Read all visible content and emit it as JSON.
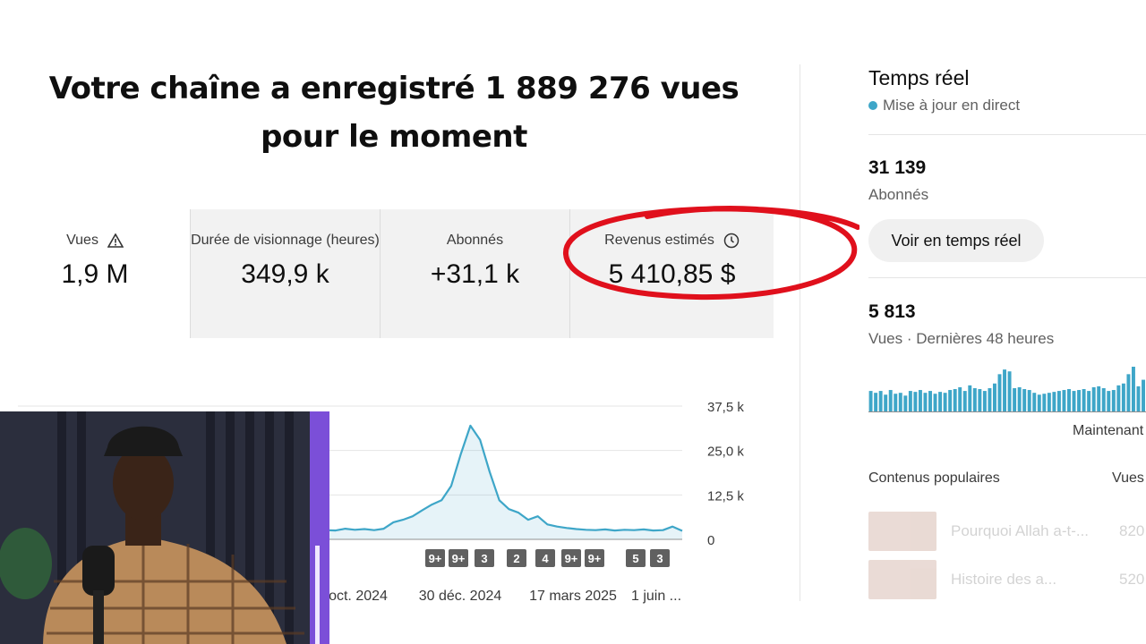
{
  "headline": "Votre chaîne a enregistré 1 889 276 vues pour le moment",
  "metrics": [
    {
      "label": "Vues",
      "value": "1,9 M",
      "icon": "warning-icon"
    },
    {
      "label": "Durée de visionnage (heures)",
      "value": "349,9 k"
    },
    {
      "label": "Abonnés",
      "value": "+31,1 k"
    },
    {
      "label": "Revenus estimés",
      "value": "5 410,85 $",
      "icon": "clock-icon"
    }
  ],
  "chart_data": {
    "type": "area",
    "x_tick_labels": [
      "oct. 2024",
      "30 déc. 2024",
      "17 mars 2025",
      "1 juin ..."
    ],
    "y_tick_labels": [
      "37,5 k",
      "25,0 k",
      "12,5 k",
      "0"
    ],
    "ylim": [
      0,
      37500
    ],
    "values": [
      8000,
      4200,
      3200,
      2900,
      2600,
      2400,
      1900,
      1700,
      1600,
      1500,
      1400,
      1500,
      2500,
      3600,
      2800,
      2300,
      2100,
      2300,
      2500,
      2600,
      2400,
      2300,
      2600,
      2800,
      2700,
      2500,
      2600,
      2700,
      2900,
      2400,
      2500,
      2700,
      2600,
      2500,
      3000,
      2700,
      2900,
      2600,
      3000,
      4800,
      5500,
      6500,
      8200,
      9800,
      11000,
      15000,
      24000,
      32000,
      28000,
      19000,
      11000,
      8500,
      7500,
      5500,
      6500,
      4200,
      3600,
      3200,
      2900,
      2700,
      2600,
      2800,
      2500,
      2700,
      2600,
      2800,
      2500,
      2600,
      3600,
      2400
    ],
    "badges": [
      "9+",
      "9+",
      "3",
      "2",
      "4",
      "9+",
      "9+",
      "5",
      "3"
    ],
    "grid": true,
    "color": "#3ea6c8"
  },
  "realtime": {
    "title": "Temps réel",
    "live_label": "Mise à jour en direct",
    "subscribers_value": "31 139",
    "subscribers_label": "Abonnés",
    "button_label": "Voir en temps réel",
    "views_value": "5 813",
    "views_label": "Vues · Dernières 48 heures",
    "now_label": "Maintenant",
    "spark_values": [
      22,
      20,
      22,
      18,
      23,
      19,
      20,
      17,
      22,
      21,
      23,
      20,
      22,
      19,
      21,
      20,
      23,
      24,
      26,
      22,
      28,
      25,
      24,
      22,
      25,
      30,
      40,
      45,
      43,
      25,
      26,
      24,
      23,
      20,
      18,
      19,
      20,
      21,
      22,
      23,
      24,
      22,
      23,
      24,
      22,
      26,
      27,
      25,
      22,
      23,
      28,
      30,
      40,
      48,
      27,
      34
    ],
    "popular_header": "Contenus populaires",
    "popular_views_header": "Vues",
    "popular": [
      {
        "title": "Pourquoi Allah a-t-...",
        "views": "820"
      },
      {
        "title": "Histoire des a...",
        "views": "520"
      }
    ],
    "accent": "#3ea6c8"
  },
  "annotation_color": "#e0101c"
}
